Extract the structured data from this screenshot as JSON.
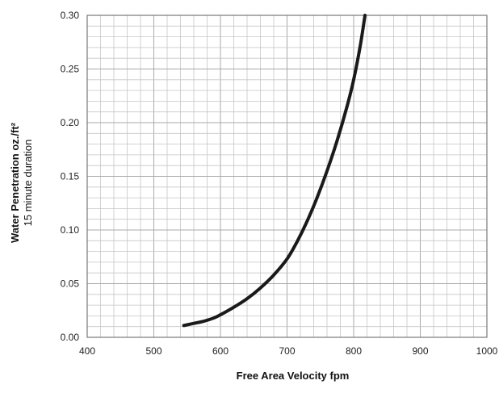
{
  "chart_data": {
    "type": "line",
    "title": "",
    "xlabel": "Free Area Velocity fpm",
    "ylabel": "Water Penetration oz./ft²",
    "ylabel_sub": "15 minute duration",
    "xlim": [
      400,
      1000
    ],
    "ylim": [
      0,
      0.3
    ],
    "x_ticks": [
      400,
      500,
      600,
      700,
      800,
      900,
      1000
    ],
    "y_ticks": [
      "0.00",
      "0.05",
      "0.10",
      "0.15",
      "0.20",
      "0.25",
      "0.30"
    ],
    "grid": true,
    "series": [
      {
        "x": [
          545,
          560,
          575,
          590,
          600,
          620,
          640,
          660,
          680,
          700,
          715,
          730,
          745,
          760,
          775,
          790,
          800,
          810,
          817
        ],
        "y": [
          0.011,
          0.013,
          0.015,
          0.018,
          0.021,
          0.028,
          0.036,
          0.046,
          0.058,
          0.073,
          0.089,
          0.108,
          0.13,
          0.155,
          0.183,
          0.215,
          0.24,
          0.272,
          0.3
        ],
        "color": "#1a1a1a"
      }
    ]
  }
}
